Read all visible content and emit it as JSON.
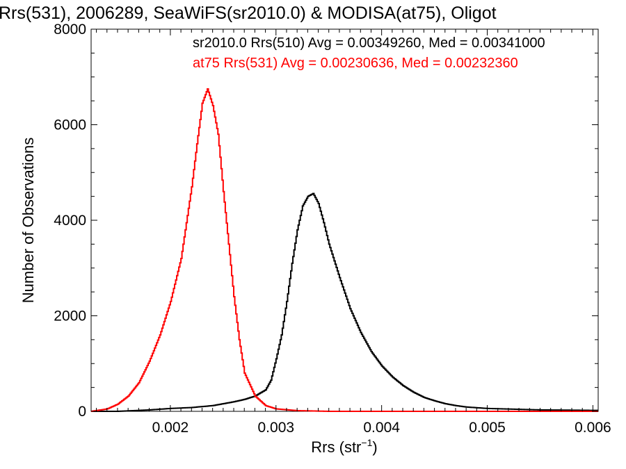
{
  "chart_data": {
    "type": "line",
    "title": "Rrs(531), 2006289, SeaWiFS(sr2010.0) & MODISA(at75), Oligot",
    "xlabel_main": "Rrs (str",
    "xlabel_sup": "−1",
    "xlabel_tail": ")",
    "ylabel": "Number of Observations",
    "xlim": [
      0.00125,
      0.00605
    ],
    "ylim": [
      0,
      8000
    ],
    "xticks": [
      0.002,
      0.003,
      0.004,
      0.005,
      0.006
    ],
    "xtick_labels": [
      "0.002",
      "0.003",
      "0.004",
      "0.005",
      "0.006"
    ],
    "yticks": [
      0,
      2000,
      4000,
      6000,
      8000
    ],
    "ytick_labels": [
      "0",
      "2000",
      "4000",
      "6000",
      "8000"
    ],
    "grid": false,
    "annotations": [
      {
        "text": "sr2010.0 Rrs(510) Avg = 0.00349260, Med = 0.00341000",
        "color": "#000000"
      },
      {
        "text": "at75 Rrs(531) Avg = 0.00230636, Med = 0.00232360",
        "color": "#ff0000"
      }
    ],
    "series": [
      {
        "color": "#000000",
        "x": [
          0.00125,
          0.0015,
          0.0018,
          0.002,
          0.0022,
          0.0024,
          0.0026,
          0.0027,
          0.0028,
          0.0029,
          0.00295,
          0.003,
          0.00305,
          0.0031,
          0.00315,
          0.0032,
          0.00325,
          0.0033,
          0.00335,
          0.0034,
          0.00345,
          0.0035,
          0.0036,
          0.0037,
          0.0038,
          0.0039,
          0.004,
          0.0041,
          0.0042,
          0.0043,
          0.0044,
          0.0045,
          0.0046,
          0.0047,
          0.0048,
          0.005,
          0.0055,
          0.006
        ],
        "y": [
          0,
          0,
          30,
          60,
          80,
          120,
          200,
          250,
          320,
          450,
          650,
          1100,
          1600,
          2300,
          3100,
          3800,
          4300,
          4500,
          4560,
          4350,
          3950,
          3500,
          2800,
          2150,
          1650,
          1250,
          950,
          720,
          540,
          400,
          290,
          220,
          160,
          120,
          90,
          60,
          30,
          20
        ]
      },
      {
        "color": "#ff0000",
        "x": [
          0.00125,
          0.0014,
          0.0015,
          0.0016,
          0.0017,
          0.0018,
          0.0019,
          0.002,
          0.0021,
          0.0022,
          0.00225,
          0.0023,
          0.00235,
          0.0024,
          0.00245,
          0.0025,
          0.00255,
          0.0026,
          0.00265,
          0.0027,
          0.0028,
          0.0029,
          0.003,
          0.0032,
          0.0035,
          0.004,
          0.006
        ],
        "y": [
          0,
          50,
          150,
          320,
          600,
          1050,
          1600,
          2300,
          3200,
          4700,
          5600,
          6450,
          6750,
          6400,
          5800,
          4600,
          3500,
          2400,
          1500,
          800,
          320,
          120,
          50,
          15,
          0,
          0,
          0
        ]
      }
    ]
  }
}
